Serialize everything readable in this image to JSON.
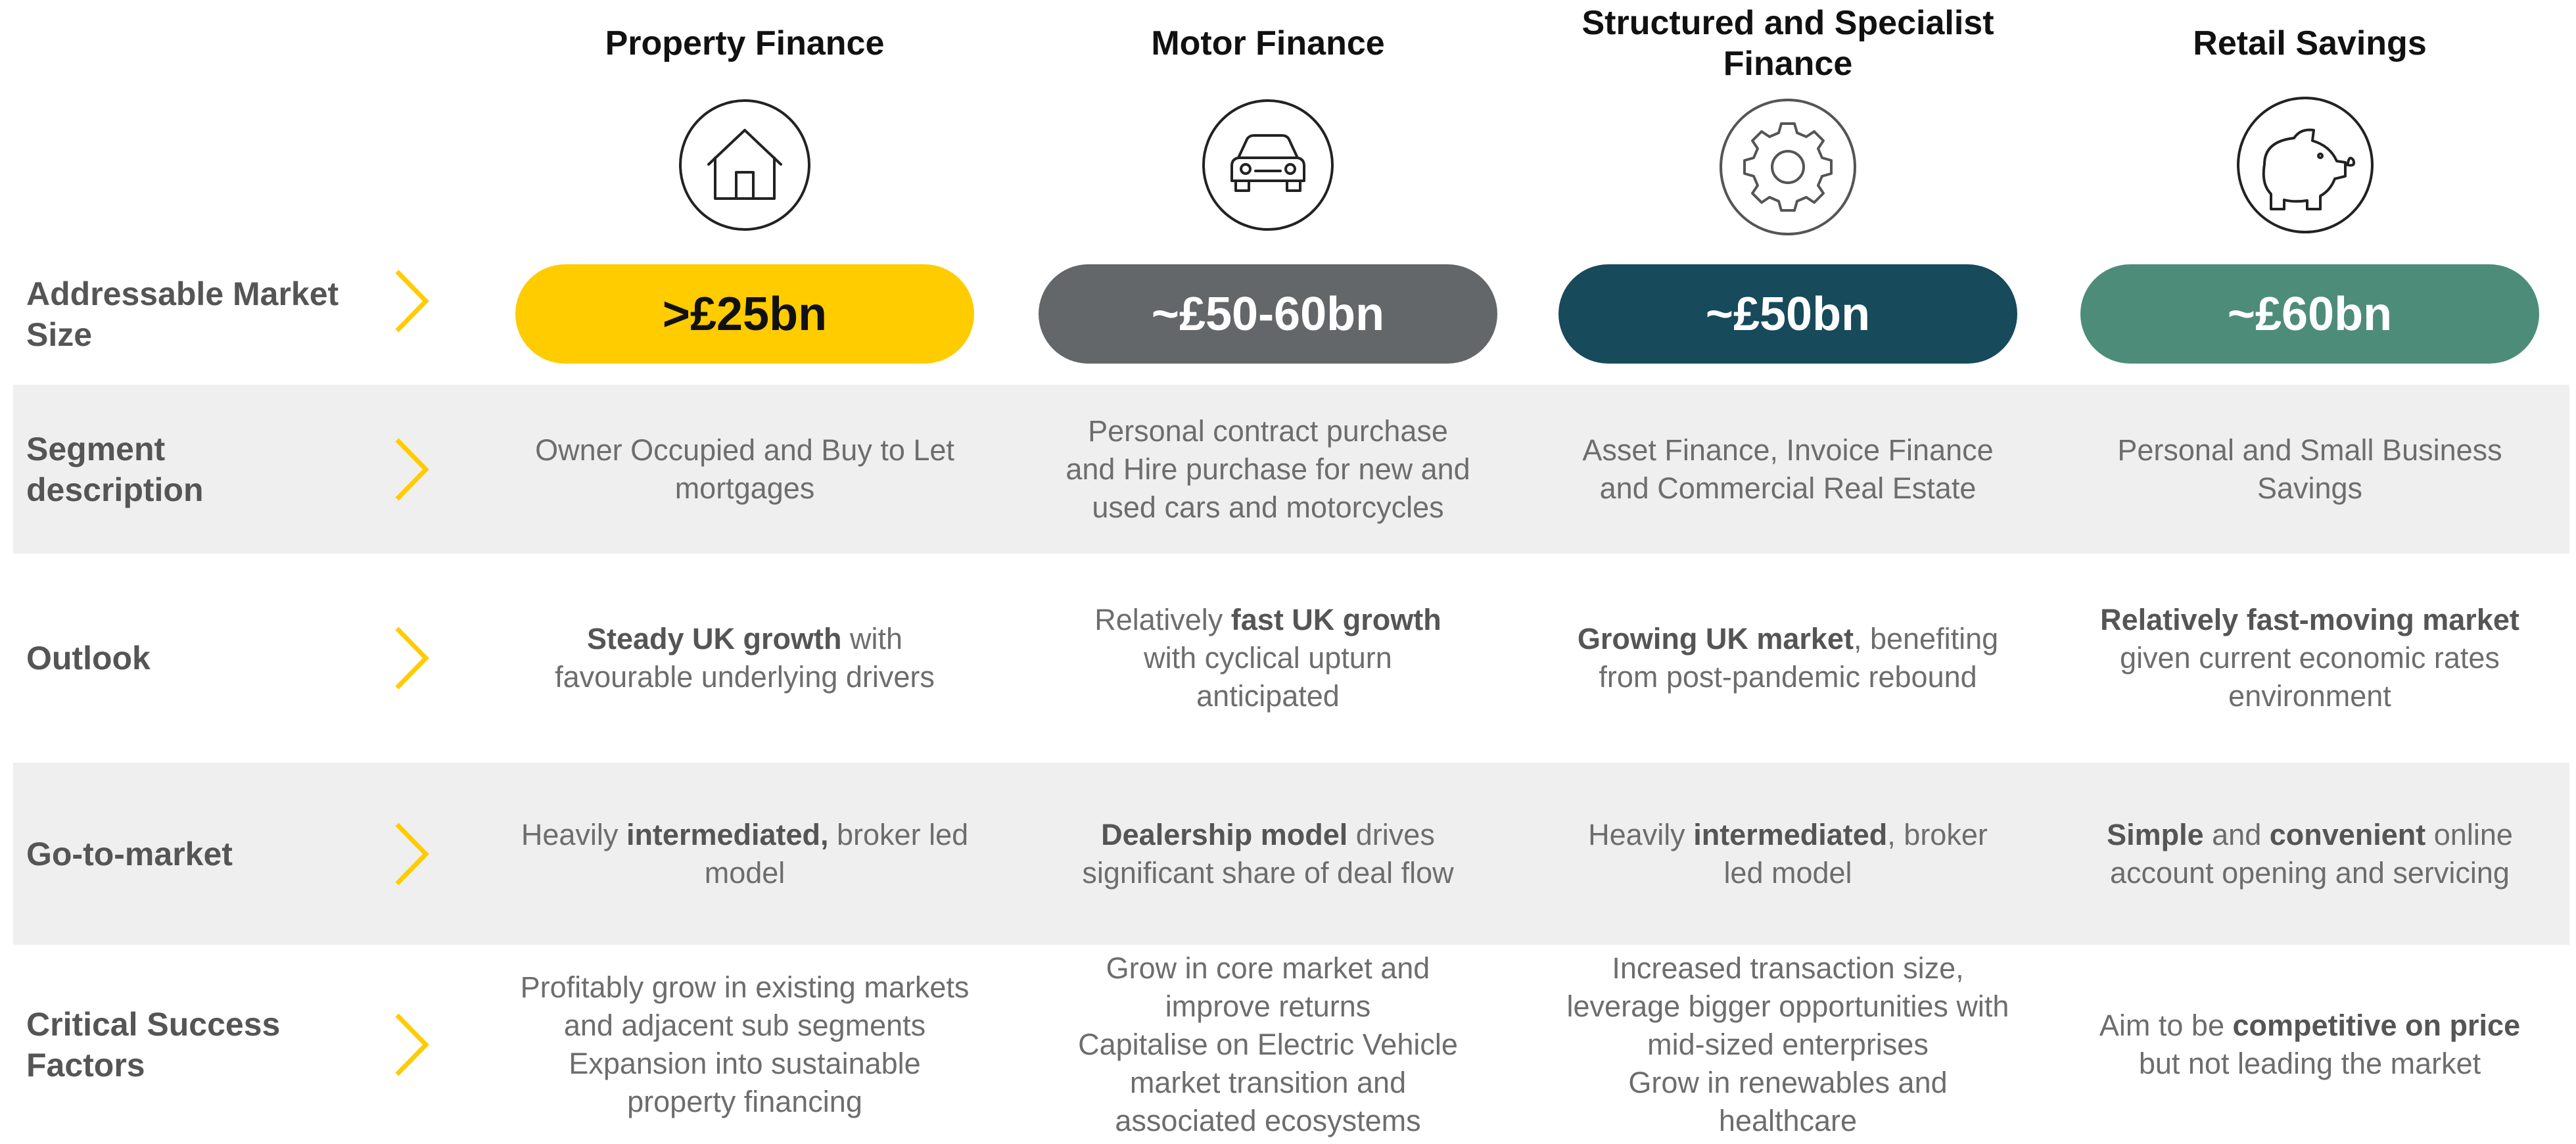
{
  "columns": [
    {
      "title": "Property Finance",
      "market_size": ">£25bn",
      "color": "#ffcc00",
      "text_color": "#111111"
    },
    {
      "title": "Motor Finance",
      "market_size": "~£50-60bn",
      "color": "#646769",
      "text_color": "#ffffff"
    },
    {
      "title": "Structured and Specialist Finance",
      "market_size": "~£50bn",
      "color": "#174a5a",
      "text_color": "#ffffff"
    },
    {
      "title": "Retail Savings",
      "market_size": "~£60bn",
      "color": "#4e8c7a",
      "text_color": "#ffffff"
    }
  ],
  "market_label": "Addressable Market Size",
  "rows": [
    {
      "label": "Segment description",
      "shaded": true,
      "cells": [
        {
          "lines": [
            [
              "Owner Occupied and Buy to Let"
            ],
            [
              "mortgages"
            ]
          ]
        },
        {
          "lines": [
            [
              "Personal contract purchase"
            ],
            [
              "and Hire purchase for new and"
            ],
            [
              "used cars and motorcycles"
            ]
          ]
        },
        {
          "lines": [
            [
              "Asset Finance, Invoice Finance"
            ],
            [
              "and Commercial Real Estate"
            ]
          ]
        },
        {
          "lines": [
            [
              "Personal and Small Business"
            ],
            [
              "Savings"
            ]
          ]
        }
      ]
    },
    {
      "label": "Outlook",
      "shaded": false,
      "cells": [
        {
          "lines": [
            [
              {
                "text": "Steady UK growth",
                "bold": true
              },
              " with"
            ],
            [
              "favourable underlying drivers"
            ]
          ]
        },
        {
          "lines": [
            [
              "Relatively ",
              {
                "text": "fast UK growth",
                "bold": true
              }
            ],
            [
              "with cyclical upturn"
            ],
            [
              "anticipated"
            ]
          ]
        },
        {
          "lines": [
            [
              {
                "text": "Growing UK market",
                "bold": true
              },
              ", benefiting"
            ],
            [
              "from post-pandemic rebound"
            ]
          ]
        },
        {
          "lines": [
            [
              {
                "text": "Relatively fast-moving market",
                "bold": true
              }
            ],
            [
              "given current economic rates"
            ],
            [
              "environment"
            ]
          ]
        }
      ]
    },
    {
      "label": "Go-to-market",
      "shaded": true,
      "cells": [
        {
          "lines": [
            [
              "Heavily ",
              {
                "text": "intermediated,",
                "bold": true
              },
              " broker led"
            ],
            [
              "model"
            ]
          ]
        },
        {
          "lines": [
            [
              {
                "text": "Dealership model",
                "bold": true
              },
              " drives"
            ],
            [
              "significant share of deal flow"
            ]
          ]
        },
        {
          "lines": [
            [
              "Heavily ",
              {
                "text": "intermediated",
                "bold": true
              },
              ", broker"
            ],
            [
              "led model"
            ]
          ]
        },
        {
          "lines": [
            [
              {
                "text": "Simple",
                "bold": true
              },
              " and ",
              {
                "text": "convenient",
                "bold": true
              },
              " online"
            ],
            [
              "account opening and servicing"
            ]
          ]
        }
      ]
    },
    {
      "label": "Critical Success Factors",
      "shaded": false,
      "cells": [
        {
          "lines": [
            [
              "Profitably grow in existing markets"
            ],
            [
              "and adjacent sub segments"
            ],
            [
              "Expansion into sustainable"
            ],
            [
              "property financing"
            ]
          ]
        },
        {
          "lines": [
            [
              "Grow in core market and"
            ],
            [
              "improve returns"
            ],
            [
              "Capitalise on Electric Vehicle"
            ],
            [
              "market transition and"
            ],
            [
              "associated ecosystems"
            ]
          ]
        },
        {
          "lines": [
            [
              "Increased transaction size,"
            ],
            [
              "leverage bigger opportunities with"
            ],
            [
              "mid-sized enterprises"
            ],
            [
              "Grow in renewables and"
            ],
            [
              "healthcare"
            ]
          ]
        },
        {
          "lines": [
            [
              "Aim to be ",
              {
                "text": "competitive on price",
                "bold": true
              }
            ],
            [
              "but not leading the market"
            ]
          ]
        }
      ]
    }
  ]
}
